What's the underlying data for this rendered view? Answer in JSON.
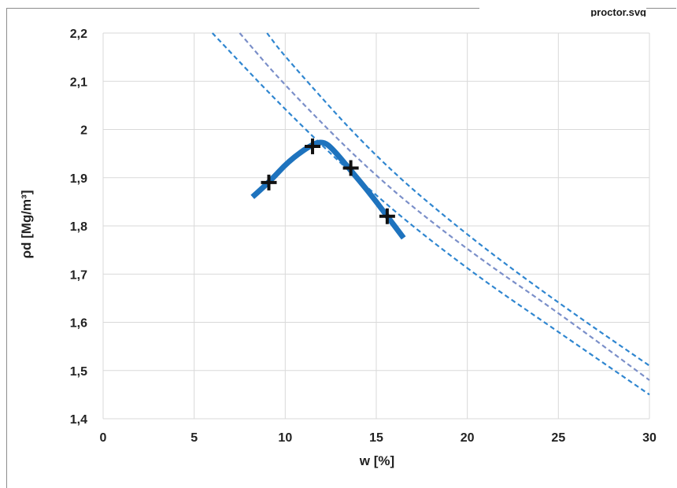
{
  "caption": "proctor.svg",
  "chart_data": {
    "type": "line",
    "xlabel": "w [%]",
    "ylabel": "ρd [Mg/m³]",
    "xlim": [
      0,
      30
    ],
    "ylim": [
      1.4,
      2.2
    ],
    "x_ticks": [
      "0",
      "5",
      "10",
      "15",
      "20",
      "25",
      "30"
    ],
    "y_ticks": [
      "1,4",
      "1,5",
      "1,6",
      "1,7",
      "1,8",
      "1,9",
      "2",
      "2,1",
      "2,2"
    ],
    "grid": true,
    "series": [
      {
        "style": "curve",
        "color": "#1e73be",
        "x": [
          8.2,
          9.1,
          10.2,
          11.5,
          12.1,
          12.6,
          13.6,
          14.6,
          15.6,
          16.5
        ],
        "y": [
          1.86,
          1.89,
          1.935,
          1.97,
          1.975,
          1.96,
          1.915,
          1.87,
          1.82,
          1.775
        ]
      },
      {
        "style": "markers",
        "marker": "+",
        "color": "#111111",
        "x": [
          9.1,
          11.5,
          13.6,
          15.6
        ],
        "y": [
          1.89,
          1.965,
          1.92,
          1.82
        ]
      },
      {
        "style": "dashed",
        "color": "#2f86d0",
        "x": [
          6,
          10,
          15,
          20,
          25,
          30
        ],
        "y": [
          2.2,
          2.04,
          1.86,
          1.71,
          1.58,
          1.45
        ]
      },
      {
        "style": "dashed",
        "color": "#7b8fc9",
        "x": [
          7.5,
          10,
          15,
          20,
          25,
          30
        ],
        "y": [
          2.2,
          2.09,
          1.9,
          1.75,
          1.62,
          1.48
        ]
      },
      {
        "style": "dashed",
        "color": "#2f86d0",
        "x": [
          9,
          10,
          15,
          20,
          25,
          30
        ],
        "y": [
          2.2,
          2.15,
          1.94,
          1.78,
          1.64,
          1.51
        ]
      }
    ]
  }
}
